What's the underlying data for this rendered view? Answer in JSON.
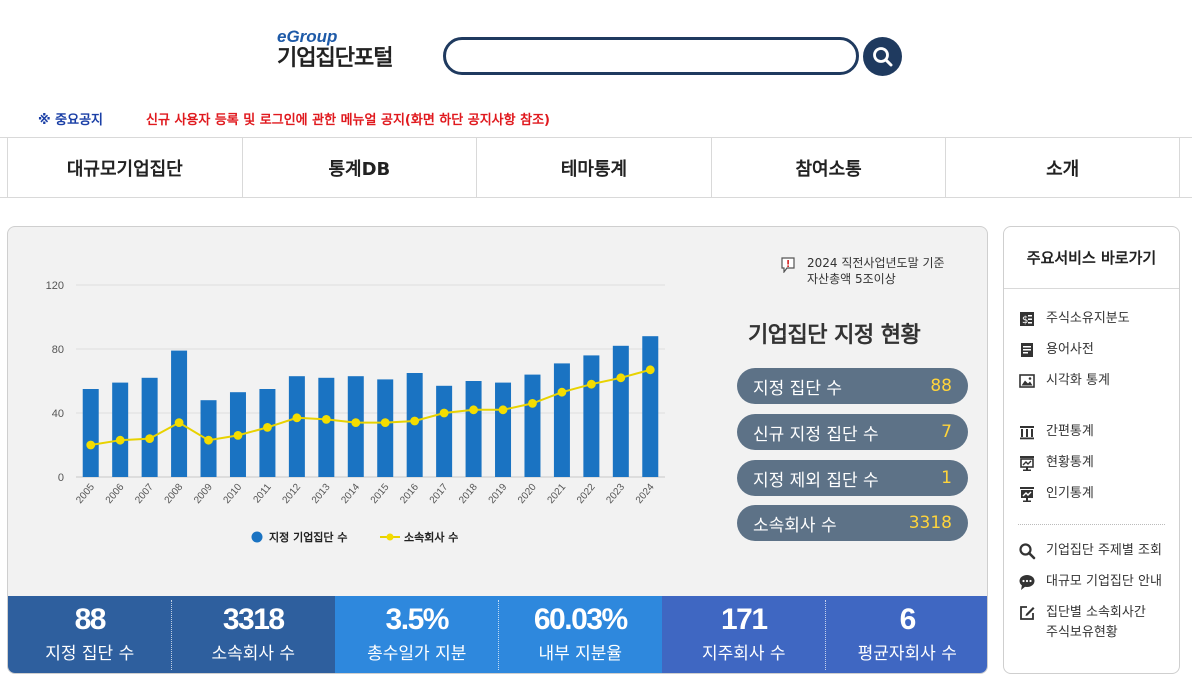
{
  "header": {
    "logo_top": "eGroup",
    "logo_title": "기업집단포털",
    "search_placeholder": ""
  },
  "notice": {
    "label": "※ 중요공지",
    "text": "신규 사용자 등록 및 로그인에 관한 메뉴얼 공지(화면 하단 공지사항 참조)"
  },
  "nav": [
    "대규모기업집단",
    "통계DB",
    "테마통계",
    "참여소통",
    "소개"
  ],
  "basis": {
    "line1": "2024 직전사업년도말 기준",
    "line2": "자산총액 5조이상"
  },
  "status": {
    "title": "기업집단 지정 현황",
    "rows": [
      {
        "label": "지정 집단 수",
        "value": "88"
      },
      {
        "label": "신규 지정 집단 수",
        "value": "7"
      },
      {
        "label": "지정 제외 집단 수",
        "value": "1"
      },
      {
        "label": "소속회사 수",
        "value": "3318"
      }
    ]
  },
  "stats": [
    {
      "num": "88",
      "label": "지정 집단 수",
      "color": "#2e5f9e"
    },
    {
      "num": "3318",
      "label": "소속회사 수",
      "color": "#2e5f9e"
    },
    {
      "num": "3.5%",
      "label": "총수일가 지분",
      "color": "#2e88dd"
    },
    {
      "num": "60.03%",
      "label": "내부 지분율",
      "color": "#2e88dd"
    },
    {
      "num": "171",
      "label": "지주회사 수",
      "color": "#3f67c2"
    },
    {
      "num": "6",
      "label": "평균자회사 수",
      "color": "#3f67c2"
    }
  ],
  "side": {
    "title": "주요서비스 바로가기",
    "items": [
      {
        "label": "주식소유지분도",
        "icon": "ownership-chart-icon"
      },
      {
        "label": "용어사전",
        "icon": "dictionary-icon"
      },
      {
        "label": "시각화 통계",
        "icon": "image-chart-icon"
      },
      {
        "label": "간편통계",
        "icon": "building-stats-icon"
      },
      {
        "label": "현황통계",
        "icon": "status-stats-icon"
      },
      {
        "label": "인기통계",
        "icon": "popular-stats-icon"
      },
      {
        "label": "기업집단 주제별 조회",
        "icon": "search-icon"
      },
      {
        "label": "대규모 기업집단 안내",
        "icon": "chat-bubble-icon"
      },
      {
        "label": "집단별 소속회사간",
        "label2": "주식보유현황",
        "icon": "edit-icon"
      }
    ]
  },
  "chart_data": {
    "type": "bar",
    "categories": [
      "2005",
      "2006",
      "2007",
      "2008",
      "2009",
      "2010",
      "2011",
      "2012",
      "2013",
      "2014",
      "2015",
      "2016",
      "2017",
      "2018",
      "2019",
      "2020",
      "2021",
      "2022",
      "2023",
      "2024"
    ],
    "ylim": [
      0,
      120
    ],
    "yticks": [
      0,
      40,
      80,
      120
    ],
    "series": [
      {
        "name": "지정 기업집단 수",
        "type": "bar",
        "color": "#1a73c2",
        "values": [
          55,
          59,
          62,
          79,
          48,
          53,
          55,
          63,
          62,
          63,
          61,
          65,
          57,
          60,
          59,
          64,
          71,
          76,
          82,
          88
        ]
      },
      {
        "name": "소속회사 수",
        "type": "line",
        "color": "#f5dc00",
        "values": [
          20,
          23,
          24,
          34,
          23,
          26,
          31,
          37,
          36,
          34,
          34,
          35,
          40,
          42,
          42,
          46,
          53,
          58,
          62,
          67
        ]
      }
    ],
    "legend_position": "bottom",
    "grid": true
  }
}
